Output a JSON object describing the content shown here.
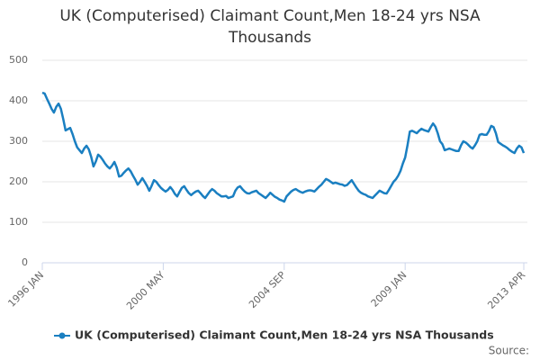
{
  "chart_data": {
    "type": "line",
    "title": "UK (Computerised) Claimant Count,Men 18-24 yrs NSA Thousands",
    "source": "Source:",
    "categories": [
      "1996 JAN",
      null,
      null,
      null,
      null,
      null,
      null,
      null,
      null,
      null,
      null,
      null,
      null,
      null,
      null,
      null,
      null,
      null,
      null,
      null,
      null,
      null,
      null,
      null,
      null,
      null,
      null,
      null,
      null,
      null,
      null,
      null,
      null,
      null,
      null,
      null,
      null,
      null,
      null,
      null,
      null,
      null,
      null,
      null,
      null,
      null,
      null,
      null,
      null,
      null,
      null,
      null,
      "2000 MAY",
      null,
      null,
      null,
      null,
      null,
      null,
      null,
      null,
      null,
      null,
      null,
      null,
      null,
      null,
      null,
      null,
      null,
      null,
      null,
      null,
      null,
      null,
      null,
      null,
      null,
      null,
      null,
      null,
      null,
      null,
      null,
      null,
      null,
      null,
      null,
      null,
      null,
      null,
      null,
      null,
      null,
      null,
      null,
      null,
      null,
      null,
      null,
      null,
      null,
      null,
      null,
      "2004 SEP",
      null,
      null,
      null,
      null,
      null,
      null,
      null,
      null,
      null,
      null,
      null,
      null,
      null,
      null,
      null,
      null,
      null,
      null,
      null,
      null,
      null,
      null,
      null,
      null,
      null,
      null,
      null,
      null,
      null,
      null,
      null,
      null,
      null,
      null,
      null,
      null,
      null,
      null,
      null,
      null,
      null,
      null,
      null,
      null,
      null,
      null,
      null,
      null,
      null,
      null,
      null,
      "2009 JAN",
      null,
      null,
      null,
      null,
      null,
      null,
      null,
      null,
      null,
      null,
      null,
      null,
      null,
      null,
      null,
      null,
      null,
      null,
      null,
      null,
      null,
      null,
      null,
      null,
      null,
      null,
      null,
      null,
      null,
      null,
      null,
      null,
      null,
      null,
      null,
      null,
      null,
      null,
      null,
      null,
      null,
      null,
      null,
      null,
      null,
      null,
      null,
      null,
      null,
      null,
      "2013 APR"
    ],
    "series": [
      {
        "name": "UK (Computerised) Claimant Count,Men 18-24 yrs NSA Thousands",
        "color": "#1a7fc1",
        "values": [
          420,
          418,
          405,
          393,
          380,
          371,
          385,
          393,
          380,
          355,
          327,
          330,
          333,
          318,
          300,
          285,
          278,
          271,
          282,
          289,
          280,
          262,
          238,
          250,
          267,
          262,
          254,
          245,
          238,
          233,
          240,
          249,
          235,
          213,
          215,
          222,
          228,
          233,
          226,
          215,
          205,
          193,
          200,
          209,
          200,
          190,
          178,
          190,
          204,
          200,
          192,
          185,
          180,
          176,
          180,
          187,
          180,
          170,
          164,
          175,
          185,
          189,
          180,
          172,
          167,
          172,
          176,
          178,
          172,
          165,
          160,
          168,
          176,
          182,
          178,
          172,
          168,
          164,
          164,
          165,
          160,
          162,
          164,
          178,
          186,
          189,
          182,
          176,
          172,
          171,
          174,
          176,
          178,
          172,
          168,
          164,
          160,
          166,
          173,
          168,
          163,
          160,
          156,
          154,
          151,
          164,
          170,
          176,
          180,
          182,
          178,
          175,
          173,
          176,
          178,
          179,
          178,
          176,
          182,
          188,
          193,
          200,
          207,
          204,
          200,
          196,
          198,
          196,
          194,
          193,
          190,
          192,
          198,
          204,
          195,
          186,
          178,
          173,
          170,
          168,
          164,
          162,
          160,
          166,
          172,
          178,
          175,
          172,
          171,
          180,
          190,
          200,
          206,
          215,
          227,
          245,
          260,
          290,
          324,
          326,
          323,
          320,
          326,
          331,
          328,
          326,
          324,
          335,
          344,
          336,
          320,
          300,
          293,
          278,
          280,
          282,
          280,
          278,
          276,
          276,
          290,
          300,
          297,
          292,
          286,
          282,
          290,
          300,
          316,
          318,
          316,
          316,
          325,
          338,
          335,
          320,
          298,
          294,
          290,
          287,
          283,
          278,
          274,
          271,
          282,
          289,
          285,
          271
        ]
      }
    ],
    "ylim": [
      0,
      500
    ],
    "yticks": [
      0,
      100,
      200,
      300,
      400,
      500
    ],
    "grid": true
  }
}
